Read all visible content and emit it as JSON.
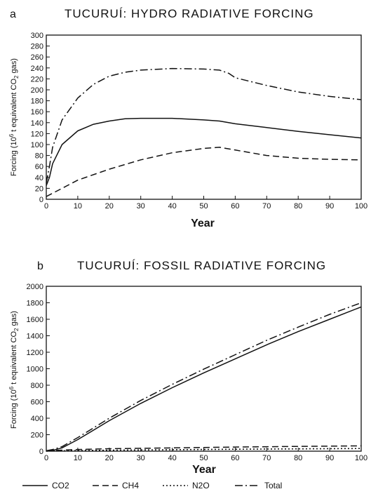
{
  "chart_data": [
    {
      "panel_letter": "a",
      "type": "line",
      "title": "TUCURUÍ: HYDRO RADIATIVE FORCING",
      "xlabel": "Year",
      "ylabel": "Forcing (10^6 t equivalent CO2 gas)",
      "xlim": [
        0,
        100
      ],
      "ylim": [
        0,
        300
      ],
      "xticks": [
        0,
        10,
        20,
        30,
        40,
        50,
        60,
        70,
        80,
        90,
        100
      ],
      "yticks": [
        0,
        20,
        40,
        60,
        80,
        100,
        120,
        140,
        160,
        180,
        200,
        220,
        240,
        260,
        280,
        300
      ],
      "grid": false,
      "series": [
        {
          "name": "CO2",
          "style": "solid",
          "x": [
            0,
            1,
            2,
            5,
            10,
            15,
            20,
            25,
            30,
            40,
            50,
            55,
            60,
            70,
            80,
            90,
            100
          ],
          "y": [
            25,
            40,
            65,
            100,
            125,
            137,
            143,
            147,
            148,
            148,
            145,
            143,
            138,
            131,
            124,
            118,
            112
          ]
        },
        {
          "name": "CH4",
          "style": "dashed",
          "x": [
            0,
            5,
            10,
            20,
            30,
            40,
            50,
            55,
            60,
            70,
            80,
            90,
            100
          ],
          "y": [
            5,
            20,
            35,
            55,
            72,
            85,
            93,
            95,
            90,
            80,
            75,
            73,
            72
          ]
        },
        {
          "name": "Total",
          "style": "dashdot",
          "x": [
            0,
            1,
            2,
            5,
            10,
            15,
            20,
            25,
            30,
            40,
            50,
            55,
            58,
            60,
            70,
            80,
            90,
            100
          ],
          "y": [
            30,
            60,
            95,
            145,
            185,
            210,
            225,
            232,
            236,
            239,
            238,
            236,
            230,
            222,
            208,
            196,
            188,
            182
          ]
        }
      ]
    },
    {
      "panel_letter": "b",
      "type": "line",
      "title": "TUCURUÍ: FOSSIL RADIATIVE FORCING",
      "xlabel": "Year",
      "ylabel": "Forcing (10^6 t equivalent CO2 gas)",
      "xlim": [
        0,
        100
      ],
      "ylim": [
        0,
        2000
      ],
      "xticks": [
        0,
        10,
        20,
        30,
        40,
        50,
        60,
        70,
        80,
        90,
        100
      ],
      "yticks": [
        0,
        200,
        400,
        600,
        800,
        1000,
        1200,
        1400,
        1600,
        1800,
        2000
      ],
      "grid": false,
      "series": [
        {
          "name": "CO2",
          "style": "solid",
          "x": [
            0,
            2,
            5,
            10,
            20,
            30,
            40,
            50,
            60,
            70,
            80,
            90,
            100
          ],
          "y": [
            0,
            10,
            40,
            140,
            370,
            580,
            770,
            950,
            1120,
            1290,
            1450,
            1600,
            1750
          ]
        },
        {
          "name": "CH4",
          "style": "dashed",
          "x": [
            0,
            10,
            20,
            40,
            60,
            80,
            100
          ],
          "y": [
            5,
            20,
            30,
            40,
            50,
            58,
            65
          ]
        },
        {
          "name": "N2O",
          "style": "dotted",
          "x": [
            0,
            10,
            20,
            40,
            60,
            80,
            100
          ],
          "y": [
            2,
            8,
            12,
            18,
            24,
            28,
            32
          ]
        },
        {
          "name": "Total",
          "style": "dashdot",
          "x": [
            0,
            2,
            5,
            10,
            20,
            30,
            40,
            50,
            60,
            70,
            80,
            90,
            100
          ],
          "y": [
            5,
            20,
            55,
            165,
            400,
            615,
            810,
            995,
            1170,
            1345,
            1505,
            1660,
            1800
          ]
        }
      ]
    }
  ],
  "legend": {
    "placement": "bottom",
    "items": [
      {
        "label": "CO2",
        "style": "solid"
      },
      {
        "label": "CH4",
        "style": "dashed"
      },
      {
        "label": "N2O",
        "style": "dotted"
      },
      {
        "label": "Total",
        "style": "dashdot"
      }
    ]
  }
}
